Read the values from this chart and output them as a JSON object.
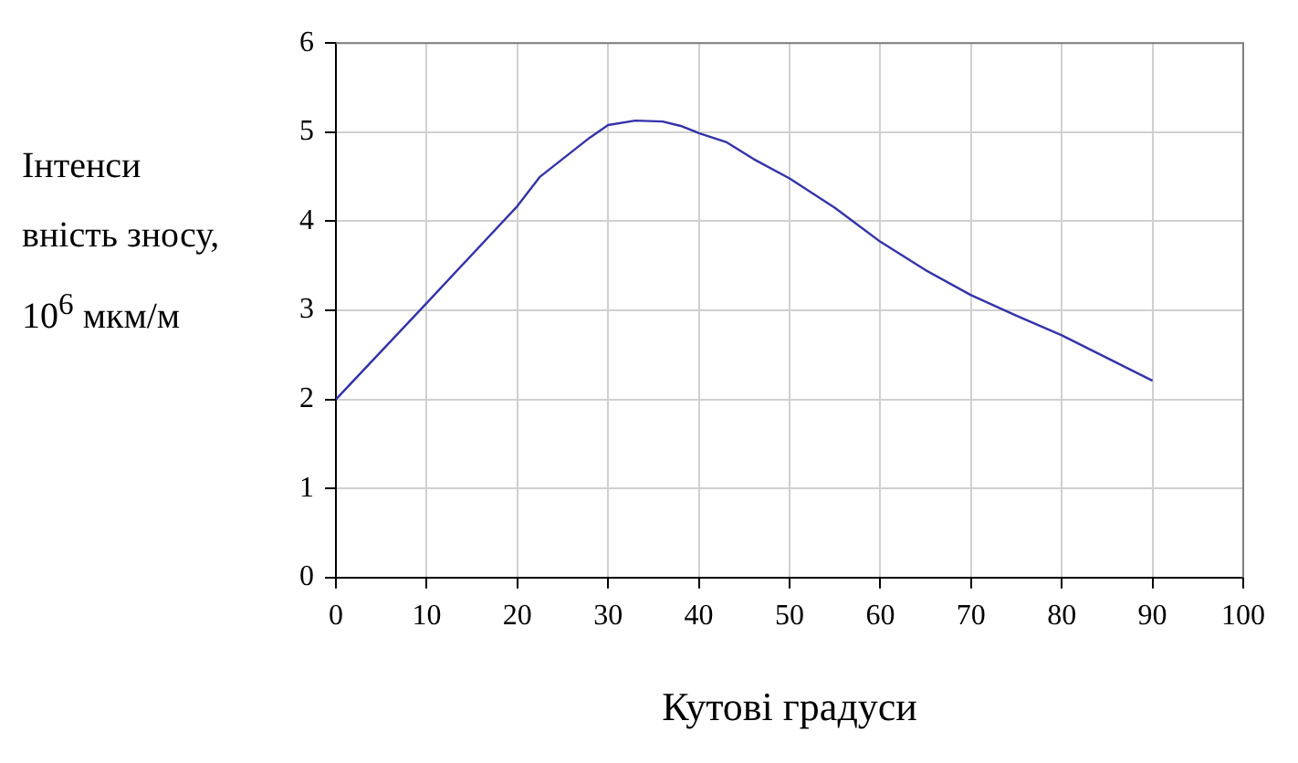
{
  "chart_data": {
    "type": "line",
    "xlabel": "Кутові градуси",
    "ylabel": "Інтенси вність зносу, 10$^{6}$ мкм/м",
    "x": [
      0,
      10,
      20,
      22.5,
      28,
      30,
      33,
      36,
      38,
      40,
      43,
      46,
      50,
      55,
      60,
      65,
      70,
      75,
      80,
      90
    ],
    "series": [
      {
        "color": "#3333aa",
        "values": [
          2,
          3.08,
          4.17,
          4.5,
          4.94,
          5.08,
          5.13,
          5.12,
          5.07,
          4.99,
          4.89,
          4.7,
          4.48,
          4.15,
          3.77,
          3.45,
          3.17,
          2.94,
          2.72,
          2.21
        ]
      }
    ],
    "xlim": [
      0,
      100
    ],
    "xticks": [
      0,
      10,
      20,
      30,
      40,
      50,
      60,
      70,
      80,
      90,
      100
    ],
    "ylim": [
      0,
      6
    ],
    "yticks": [
      0,
      1,
      2,
      3,
      4,
      5,
      6
    ],
    "grid": true,
    "legend": false,
    "marker": "none",
    "line_style": "solid"
  }
}
